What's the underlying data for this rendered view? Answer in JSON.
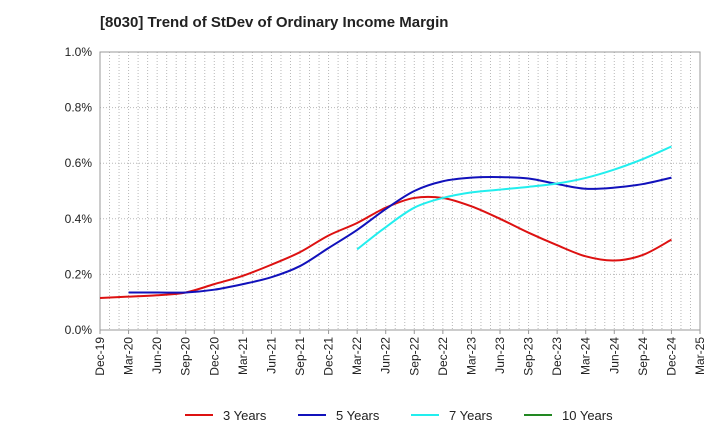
{
  "chart_data": {
    "type": "line",
    "title": "[8030]  Trend of StDev of Ordinary Income Margin",
    "xlabel": "",
    "ylabel": "",
    "ylim": [
      0,
      1.0
    ],
    "y_ticks": [
      "0.0%",
      "0.2%",
      "0.4%",
      "0.6%",
      "0.8%",
      "1.0%"
    ],
    "y_tick_values": [
      0,
      0.2,
      0.4,
      0.6,
      0.8,
      1.0
    ],
    "x_ticks": [
      "Dec-19",
      "Mar-20",
      "Jun-20",
      "Sep-20",
      "Dec-20",
      "Mar-21",
      "Jun-21",
      "Sep-21",
      "Dec-21",
      "Mar-22",
      "Jun-22",
      "Sep-22",
      "Dec-22",
      "Mar-23",
      "Jun-23",
      "Sep-23",
      "Dec-23",
      "Mar-24",
      "Jun-24",
      "Sep-24",
      "Dec-24",
      "Mar-25"
    ],
    "x": [
      "Dec-19",
      "Mar-20",
      "Jun-20",
      "Sep-20",
      "Dec-20",
      "Mar-21",
      "Jun-21",
      "Sep-21",
      "Dec-21",
      "Mar-22",
      "Jun-22",
      "Sep-22",
      "Dec-22",
      "Mar-23",
      "Jun-23",
      "Sep-23",
      "Dec-23",
      "Mar-24",
      "Jun-24",
      "Sep-24",
      "Dec-24"
    ],
    "grid": true,
    "legend_position": "bottom",
    "series": [
      {
        "name": "3 Years",
        "color": "#dd1111",
        "values": [
          0.115,
          0.12,
          0.125,
          0.135,
          0.165,
          0.195,
          0.235,
          0.28,
          0.34,
          0.385,
          0.44,
          0.475,
          0.475,
          0.445,
          0.4,
          0.35,
          0.305,
          0.265,
          0.25,
          0.27,
          0.325
        ]
      },
      {
        "name": "5 Years",
        "color": "#1111bb",
        "values": [
          null,
          0.135,
          0.135,
          0.135,
          0.145,
          0.165,
          0.19,
          0.23,
          0.295,
          0.36,
          0.435,
          0.5,
          0.535,
          0.548,
          0.55,
          0.545,
          0.525,
          0.508,
          0.512,
          0.525,
          0.548
        ]
      },
      {
        "name": "7 Years",
        "color": "#22eeee",
        "values": [
          null,
          null,
          null,
          null,
          null,
          null,
          null,
          null,
          null,
          0.29,
          0.37,
          0.44,
          0.475,
          0.495,
          0.505,
          0.515,
          0.527,
          0.547,
          0.577,
          0.615,
          0.66
        ]
      },
      {
        "name": "10 Years",
        "color": "#228822",
        "values": [
          null,
          null,
          null,
          null,
          null,
          null,
          null,
          null,
          null,
          null,
          null,
          null,
          null,
          null,
          null,
          null,
          null,
          null,
          null,
          null,
          null
        ]
      }
    ]
  }
}
